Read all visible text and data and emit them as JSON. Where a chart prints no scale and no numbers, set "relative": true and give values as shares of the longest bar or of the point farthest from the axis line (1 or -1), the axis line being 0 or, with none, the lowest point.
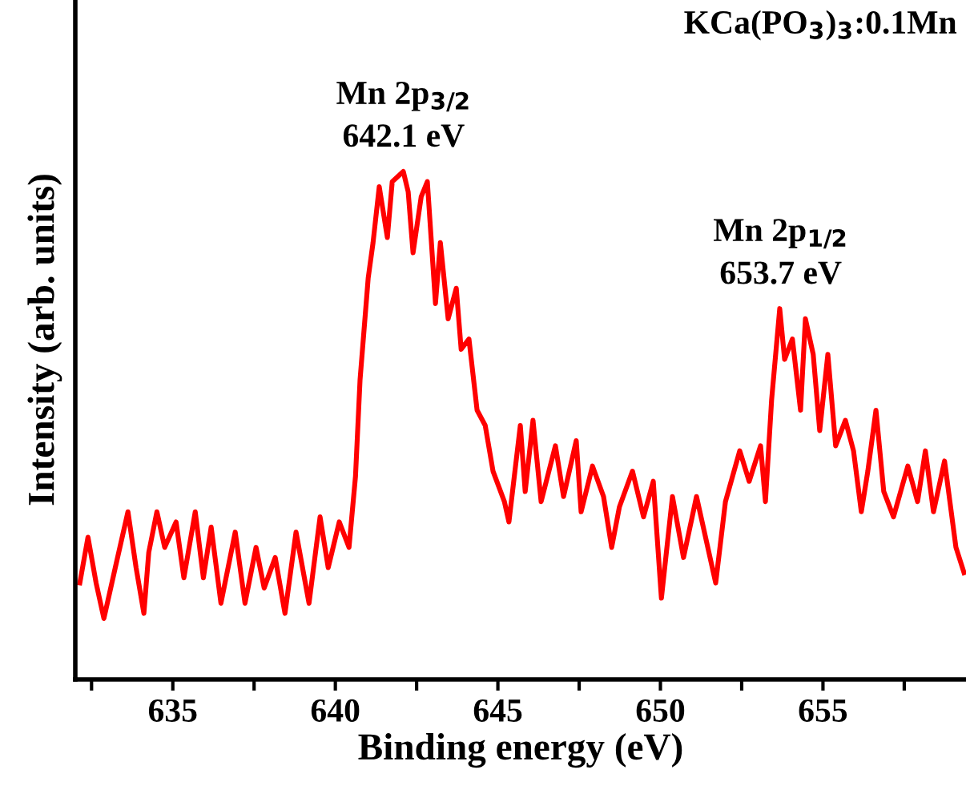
{
  "chart_data": {
    "type": "line",
    "relative": true,
    "xlabel": "Binding energy (eV)",
    "ylabel": "Intensity (arb. units)",
    "xlim": [
      632.0,
      659.4
    ],
    "xticks": [
      {
        "value": 632.5,
        "label": null
      },
      635,
      {
        "value": 637.5,
        "label": null
      },
      640,
      {
        "value": 642.5,
        "label": null
      },
      645,
      {
        "value": 647.5,
        "label": null
      },
      650,
      {
        "value": 652.5,
        "label": null
      },
      655,
      {
        "value": 657.5,
        "label": null
      }
    ],
    "tick_labels": "x",
    "grid": false,
    "legend": false,
    "marker": "none",
    "line_style": "solid",
    "annotations": [
      {
        "text": "Mn 2p$_{3/2}$\n642.1 eV",
        "x": 642.1,
        "y": 1.0
      },
      {
        "text": "Mn 2p$_{1/2}$\n653.7 eV",
        "x": 653.7,
        "y": 0.73
      },
      "KCa(PO$_{3}$)$_{3}$:0.1Mn"
    ],
    "series": [
      {
        "color": "#ff0000",
        "x": [
          632.14,
          632.39,
          632.64,
          632.88,
          633.23,
          633.62,
          633.87,
          634.11,
          634.26,
          634.51,
          634.75,
          635.1,
          635.34,
          635.69,
          635.94,
          636.18,
          636.48,
          636.92,
          637.22,
          637.56,
          637.81,
          638.15,
          638.45,
          638.79,
          639.19,
          639.53,
          639.78,
          640.12,
          640.42,
          640.62,
          640.76,
          641.01,
          641.16,
          641.35,
          641.6,
          641.75,
          642.09,
          642.24,
          642.39,
          642.64,
          642.83,
          643.08,
          643.23,
          643.47,
          643.72,
          643.87,
          644.11,
          644.36,
          644.61,
          644.85,
          645.2,
          645.34,
          645.69,
          645.84,
          646.08,
          646.33,
          646.77,
          647.02,
          647.41,
          647.56,
          647.91,
          648.25,
          648.5,
          648.74,
          649.14,
          649.48,
          649.78,
          650.03,
          650.37,
          650.71,
          651.11,
          651.7,
          652.0,
          652.44,
          652.73,
          653.08,
          653.23,
          653.42,
          653.67,
          653.82,
          654.06,
          654.31,
          654.46,
          654.7,
          654.9,
          655.15,
          655.39,
          655.69,
          655.94,
          656.18,
          656.38,
          656.63,
          656.87,
          657.17,
          657.61,
          657.91,
          658.15,
          658.4,
          658.74,
          659.09,
          659.34
        ],
        "values": [
          0.19,
          0.28,
          0.19,
          0.12,
          0.22,
          0.33,
          0.22,
          0.13,
          0.25,
          0.33,
          0.26,
          0.31,
          0.2,
          0.33,
          0.2,
          0.3,
          0.15,
          0.29,
          0.15,
          0.26,
          0.18,
          0.24,
          0.13,
          0.29,
          0.15,
          0.32,
          0.22,
          0.31,
          0.26,
          0.4,
          0.59,
          0.79,
          0.86,
          0.97,
          0.87,
          0.98,
          1.0,
          0.96,
          0.84,
          0.95,
          0.98,
          0.74,
          0.86,
          0.71,
          0.77,
          0.65,
          0.67,
          0.53,
          0.5,
          0.41,
          0.35,
          0.31,
          0.5,
          0.37,
          0.51,
          0.35,
          0.46,
          0.36,
          0.47,
          0.33,
          0.42,
          0.36,
          0.26,
          0.34,
          0.41,
          0.32,
          0.39,
          0.16,
          0.36,
          0.24,
          0.36,
          0.19,
          0.35,
          0.45,
          0.39,
          0.46,
          0.35,
          0.55,
          0.73,
          0.63,
          0.67,
          0.53,
          0.71,
          0.64,
          0.49,
          0.64,
          0.46,
          0.51,
          0.45,
          0.33,
          0.41,
          0.53,
          0.37,
          0.32,
          0.42,
          0.35,
          0.45,
          0.33,
          0.43,
          0.26,
          0.21
        ]
      }
    ]
  }
}
